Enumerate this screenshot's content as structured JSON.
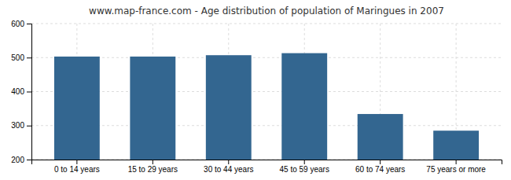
{
  "chart_data": {
    "type": "bar",
    "title": "www.map-france.com - Age distribution of population of Maringues in 2007",
    "categories": [
      "0 to 14 years",
      "15 to 29 years",
      "30 to 44 years",
      "45 to 59 years",
      "60 to 74 years",
      "75 years or more"
    ],
    "values": [
      503,
      503,
      507,
      513,
      334,
      285
    ],
    "color": "#336690",
    "ylim": [
      200,
      600
    ],
    "yticks": [
      200,
      300,
      400,
      500,
      600
    ],
    "grid": true
  }
}
